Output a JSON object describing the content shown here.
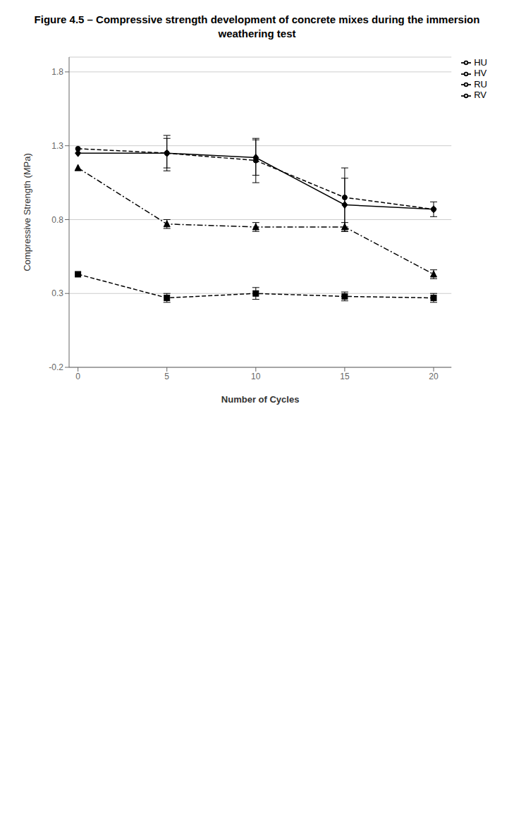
{
  "chart_data": {
    "type": "line",
    "title": "Figure 4.5 – Compressive strength development of concrete mixes during the immersion\nweathering test",
    "xlabel": "Number of Cycles",
    "ylabel": "Compressive Strength (MPa)",
    "xlim": [
      -0.5,
      21
    ],
    "ylim": [
      -0.2,
      1.9
    ],
    "xticks": [
      0,
      5,
      10,
      15,
      20
    ],
    "yticks": [
      -0.2,
      0.3,
      0.8,
      1.3,
      1.8
    ],
    "grid": "y",
    "legend": "upper right",
    "x": [
      0,
      5,
      10,
      15,
      20
    ],
    "series": [
      {
        "name": "RU",
        "values": [
          1.25,
          1.25,
          1.22,
          0.9,
          0.87
        ],
        "error": [
          0.0,
          0.12,
          0.12,
          0.18,
          0.0
        ],
        "line_style": "solid",
        "marker": "diamond",
        "color": "#000000"
      },
      {
        "name": "HU",
        "values": [
          0.43,
          0.27,
          0.3,
          0.28,
          0.27
        ],
        "error": [
          0.0,
          0.03,
          0.04,
          0.03,
          0.03
        ],
        "line_style": "dashed",
        "marker": "square",
        "color": "#000000"
      },
      {
        "name": "RV",
        "values": [
          1.15,
          0.77,
          0.75,
          0.75,
          0.43
        ],
        "error": [
          0.0,
          0.03,
          0.03,
          0.03,
          0.03
        ],
        "line_style": "dashdot",
        "marker": "triangle",
        "color": "#000000"
      },
      {
        "name": "HV",
        "values": [
          1.28,
          1.25,
          1.2,
          0.95,
          0.87
        ],
        "error": [
          0.0,
          0.1,
          0.15,
          0.2,
          0.05
        ],
        "line_style": "dashed",
        "marker": "circle",
        "color": "#000000"
      }
    ]
  }
}
